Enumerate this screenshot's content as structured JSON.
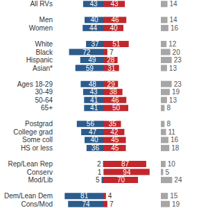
{
  "chart_data": {
    "type": "bar",
    "orientation": "horizontal",
    "categories": [
      "All RVs",
      null,
      "Men",
      "Women",
      null,
      "White",
      "Black",
      "Hispanic",
      "Asian*",
      null,
      "Ages 18-29",
      "30-49",
      "50-64",
      "65+",
      null,
      "Postgrad",
      "College grad",
      "Some coll",
      "HS or less",
      null,
      "Rep/Lean Rep",
      "Conserv",
      "Mod/Lib",
      null,
      "Dem/Lean Dem",
      "Cons/Mod"
    ],
    "series": [
      {
        "color": "#2d5b8a",
        "values": [
          43,
          null,
          40,
          44,
          null,
          37,
          72,
          49,
          59,
          null,
          48,
          43,
          41,
          41,
          null,
          56,
          47,
          40,
          36,
          null,
          2,
          1,
          5,
          null,
          81,
          74
        ]
      },
      {
        "color": "#c1272d",
        "values": [
          43,
          null,
          46,
          40,
          null,
          51,
          7,
          28,
          31,
          null,
          29,
          38,
          46,
          50,
          null,
          35,
          42,
          45,
          45,
          null,
          87,
          94,
          70,
          null,
          4,
          7
        ]
      },
      {
        "color": "#a6a6a6",
        "values": [
          14,
          null,
          14,
          16,
          null,
          12,
          20,
          23,
          13,
          null,
          23,
          19,
          13,
          8,
          null,
          8,
          11,
          16,
          18,
          null,
          10,
          5,
          24,
          null,
          15,
          19
        ]
      }
    ],
    "xlim": [
      0,
      100
    ],
    "data_labels": true,
    "tick_labels": "y",
    "grid": false
  }
}
